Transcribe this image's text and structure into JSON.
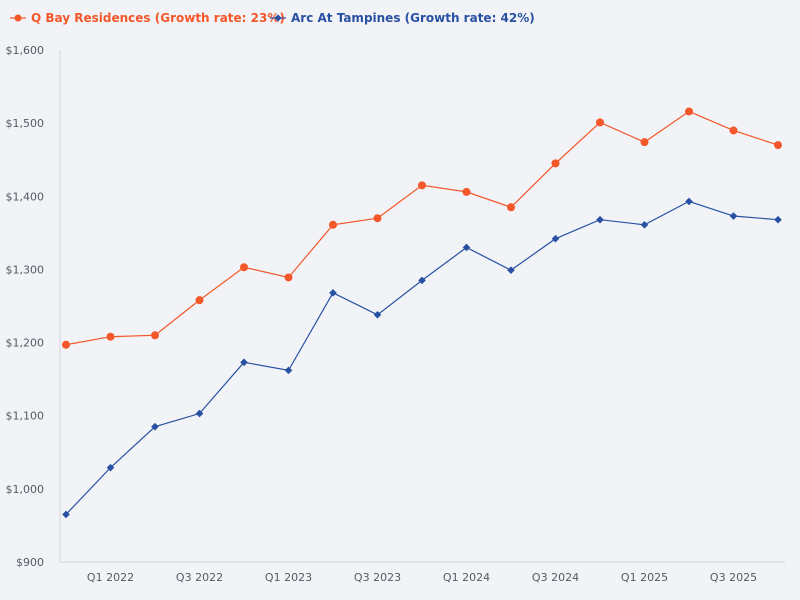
{
  "chart_data": {
    "type": "line",
    "title": "",
    "xlabel": "",
    "ylabel": "",
    "ylim": [
      900,
      1600
    ],
    "yticks": [
      900,
      1000,
      1100,
      1200,
      1300,
      1400,
      1500,
      1600
    ],
    "ytick_labels": [
      "$900",
      "$1,000",
      "$1,100",
      "$1,200",
      "$1,300",
      "$1,400",
      "$1,500",
      "$1,600"
    ],
    "categories": [
      "Q4 2021",
      "Q1 2022",
      "Q2 2022",
      "Q3 2022",
      "Q4 2022",
      "Q1 2023",
      "Q2 2023",
      "Q3 2023",
      "Q4 2023",
      "Q1 2024",
      "Q2 2024",
      "Q3 2024",
      "Q4 2024",
      "Q1 2025",
      "Q2 2025",
      "Q3 2025",
      "Q4 2025"
    ],
    "xtick_labels": [
      {
        "index": 1,
        "label": "Q1 2022"
      },
      {
        "index": 3,
        "label": "Q3 2022"
      },
      {
        "index": 5,
        "label": "Q1 2023"
      },
      {
        "index": 7,
        "label": "Q3 2023"
      },
      {
        "index": 9,
        "label": "Q1 2024"
      },
      {
        "index": 11,
        "label": "Q3 2024"
      },
      {
        "index": 13,
        "label": "Q1 2025"
      },
      {
        "index": 15,
        "label": "Q3 2025"
      }
    ],
    "legend_position": "top-left",
    "grid": false,
    "series": [
      {
        "name": "Q Bay Residences (Growth rate: 23%)",
        "color": "#f4572a",
        "marker": "circle",
        "values": [
          1197,
          1208,
          1210,
          1258,
          1303,
          1289,
          1361,
          1370,
          1415,
          1406,
          1385,
          1445,
          1501,
          1474,
          1516,
          1490,
          1470
        ]
      },
      {
        "name": "Arc At Tampines (Growth rate: 42%)",
        "color": "#2851a3",
        "marker": "diamond",
        "values": [
          965,
          1029,
          1085,
          1103,
          1173,
          1162,
          1268,
          1238,
          1285,
          1330,
          1299,
          1342,
          1368,
          1361,
          1393,
          1373,
          1368
        ]
      }
    ]
  }
}
